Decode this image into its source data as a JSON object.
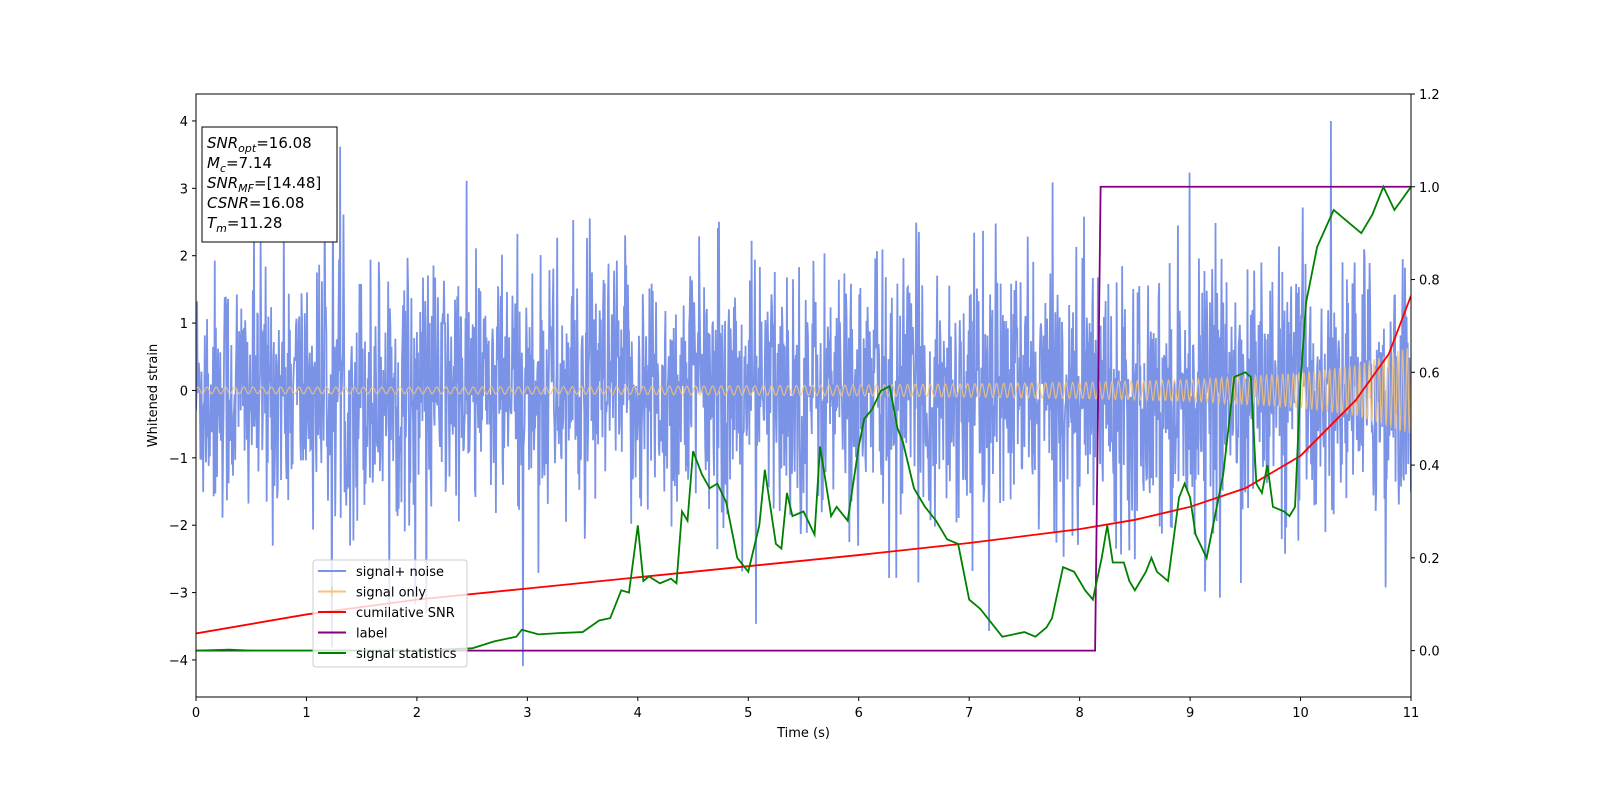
{
  "chart_data": {
    "type": "line",
    "xlabel": "Time (s)",
    "ylabel": "Whitened strain",
    "xlim": [
      0,
      11
    ],
    "ylim_left": [
      -4.55,
      4.4
    ],
    "ylim_right": [
      -0.1,
      1.2
    ],
    "x_ticks": [
      "0",
      "1",
      "2",
      "3",
      "4",
      "5",
      "6",
      "7",
      "8",
      "9",
      "10",
      "11"
    ],
    "y_ticks_left": [
      "4",
      "3",
      "2",
      "1",
      "0",
      "−1",
      "−2",
      "−3",
      "−4"
    ],
    "y_ticks_right": [
      "1.2",
      "1.0",
      "0.8",
      "0.6",
      "0.4",
      "0.2",
      "0.0"
    ],
    "annotation": [
      {
        "base": "SNR",
        "sub": "opt",
        "value": "=16.08"
      },
      {
        "base": "M",
        "sub": "c",
        "value": "=7.14"
      },
      {
        "base": "SNR",
        "sub": "MF",
        "value": "=[14.48]"
      },
      {
        "base": "CSNR",
        "sub": "",
        "value": "=16.08"
      },
      {
        "base": "T",
        "sub": "m",
        "value": "=11.28"
      }
    ],
    "legend": {
      "placement": "lower-left",
      "entries": [
        {
          "label": "signal+ noise",
          "color": "#7b93e6"
        },
        {
          "label": "signal only",
          "color": "#f5c37a"
        },
        {
          "label": "cumilative SNR",
          "color": "#ff0000"
        },
        {
          "label": "label",
          "color": "#800080"
        },
        {
          "label": "signal statistics",
          "color": "#008000"
        }
      ]
    },
    "series": [
      {
        "name": "signal+ noise",
        "axis": "left",
        "color": "#7b93e6",
        "noise_std": 0.95,
        "noise_range": [
          -4.2,
          4.0
        ],
        "sample_count": 2200
      },
      {
        "name": "signal only",
        "axis": "left",
        "color": "#f5c37a",
        "amplitude": {
          "x": [
            0,
            2,
            4,
            6,
            8,
            9,
            10,
            10.5,
            11
          ],
          "y": [
            0.05,
            0.05,
            0.06,
            0.08,
            0.12,
            0.16,
            0.26,
            0.38,
            0.65
          ]
        }
      },
      {
        "name": "cumilative SNR",
        "axis": "right",
        "color": "#ff0000",
        "x": [
          0,
          1,
          2,
          3,
          4,
          5,
          6,
          7,
          8,
          8.5,
          9,
          9.5,
          10,
          10.5,
          10.8,
          11
        ],
        "y": [
          0.037,
          0.078,
          0.11,
          0.134,
          0.158,
          0.182,
          0.206,
          0.232,
          0.262,
          0.282,
          0.31,
          0.35,
          0.42,
          0.54,
          0.64,
          0.765
        ]
      },
      {
        "name": "label",
        "axis": "right",
        "color": "#800080",
        "x": [
          0,
          8.14,
          8.19,
          11
        ],
        "y": [
          0,
          0,
          1,
          1
        ]
      },
      {
        "name": "signal statistics",
        "axis": "right",
        "color": "#008000",
        "x": [
          0,
          0.3,
          0.5,
          1,
          1.5,
          2,
          2.5,
          2.7,
          2.9,
          2.95,
          3.1,
          3.3,
          3.5,
          3.65,
          3.75,
          3.85,
          3.92,
          4.0,
          4.05,
          4.1,
          4.2,
          4.3,
          4.35,
          4.4,
          4.45,
          4.5,
          4.58,
          4.65,
          4.72,
          4.8,
          4.9,
          5.0,
          5.1,
          5.15,
          5.25,
          5.3,
          5.35,
          5.4,
          5.5,
          5.6,
          5.65,
          5.75,
          5.8,
          5.9,
          6.0,
          6.05,
          6.12,
          6.2,
          6.28,
          6.35,
          6.4,
          6.5,
          6.6,
          6.7,
          6.8,
          6.9,
          7.0,
          7.1,
          7.3,
          7.5,
          7.6,
          7.7,
          7.75,
          7.85,
          7.95,
          8.05,
          8.12,
          8.2,
          8.25,
          8.3,
          8.4,
          8.45,
          8.5,
          8.6,
          8.65,
          8.7,
          8.8,
          8.9,
          8.95,
          9.0,
          9.05,
          9.15,
          9.25,
          9.3,
          9.4,
          9.5,
          9.55,
          9.6,
          9.65,
          9.7,
          9.75,
          9.85,
          9.9,
          9.95,
          10.0,
          10.05,
          10.15,
          10.3,
          10.45,
          10.55,
          10.65,
          10.75,
          10.85,
          11.0
        ],
        "y": [
          0,
          0.002,
          0.0,
          0.0,
          0.0,
          0.0,
          0.005,
          0.02,
          0.03,
          0.045,
          0.035,
          0.038,
          0.04,
          0.065,
          0.07,
          0.13,
          0.125,
          0.27,
          0.15,
          0.16,
          0.145,
          0.155,
          0.145,
          0.3,
          0.28,
          0.43,
          0.38,
          0.35,
          0.36,
          0.32,
          0.2,
          0.17,
          0.27,
          0.39,
          0.23,
          0.22,
          0.34,
          0.29,
          0.3,
          0.25,
          0.44,
          0.29,
          0.31,
          0.28,
          0.44,
          0.5,
          0.52,
          0.56,
          0.57,
          0.48,
          0.45,
          0.35,
          0.31,
          0.28,
          0.24,
          0.23,
          0.11,
          0.09,
          0.03,
          0.04,
          0.03,
          0.05,
          0.07,
          0.18,
          0.17,
          0.13,
          0.11,
          0.2,
          0.27,
          0.19,
          0.19,
          0.15,
          0.13,
          0.17,
          0.2,
          0.17,
          0.15,
          0.33,
          0.36,
          0.33,
          0.25,
          0.2,
          0.32,
          0.38,
          0.59,
          0.6,
          0.59,
          0.36,
          0.34,
          0.4,
          0.31,
          0.3,
          0.29,
          0.31,
          0.58,
          0.75,
          0.87,
          0.95,
          0.92,
          0.9,
          0.94,
          1.0,
          0.95,
          1.0
        ]
      }
    ]
  }
}
